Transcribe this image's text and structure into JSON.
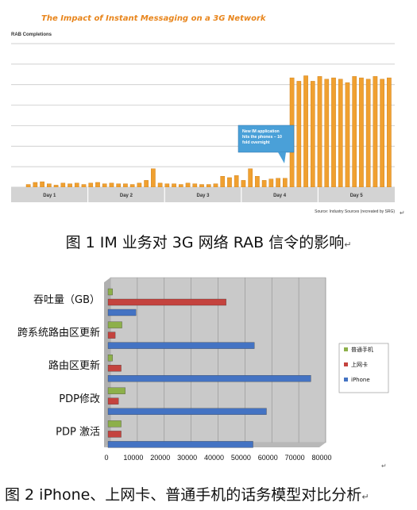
{
  "chart_data": [
    {
      "type": "bar",
      "title": "The Impact of Instant Messaging on a 3G Network",
      "ylabel": "RAB Completions",
      "days": [
        "Day 1",
        "Day 2",
        "Day 3",
        "Day 4",
        "Day 5"
      ],
      "annotation": "New IM application hits the phones – 10 fold overnight",
      "source": "Source: Industry Sources (recreated by SRG)",
      "ylim": [
        0,
        210
      ],
      "values": [
        4,
        7,
        8,
        5,
        3,
        6,
        5,
        6,
        4,
        6,
        7,
        5,
        6,
        5,
        5,
        4,
        6,
        10,
        27,
        6,
        5,
        5,
        4,
        6,
        5,
        4,
        4,
        5,
        16,
        14,
        17,
        10,
        27,
        16,
        10,
        12,
        13,
        13,
        160,
        155,
        163,
        155,
        162,
        158,
        160,
        158,
        153,
        162,
        160,
        158,
        162,
        158,
        160
      ]
    },
    {
      "type": "bar",
      "orientation": "horizontal",
      "categories": [
        "吞吐量（GB）",
        "跨系统路由区更新",
        "路由区更新",
        "PDP修改",
        "PDP 激活"
      ],
      "series": [
        {
          "name": "普通手机",
          "color": "#8db04a",
          "values": [
            800,
            4300,
            800,
            5500,
            4000
          ]
        },
        {
          "name": "上网卡",
          "color": "#c4433e",
          "values": [
            43000,
            1800,
            4000,
            3000,
            4000
          ]
        },
        {
          "name": "iPhone",
          "color": "#4473c3",
          "values": [
            9500,
            53500,
            74500,
            58000,
            53000
          ]
        }
      ],
      "xticks": [
        "0",
        "10000",
        "20000",
        "30000",
        "40000",
        "50000",
        "60000",
        "70000",
        "80000"
      ],
      "xlim": [
        0,
        80000
      ]
    }
  ],
  "captions": {
    "fig1": "图 1 IM 业务对 3G 网络 RAB 信令的影响",
    "fig2": "图 2 iPhone、上网卡、普通手机的话务模型对比分析",
    "mark": "↵"
  }
}
